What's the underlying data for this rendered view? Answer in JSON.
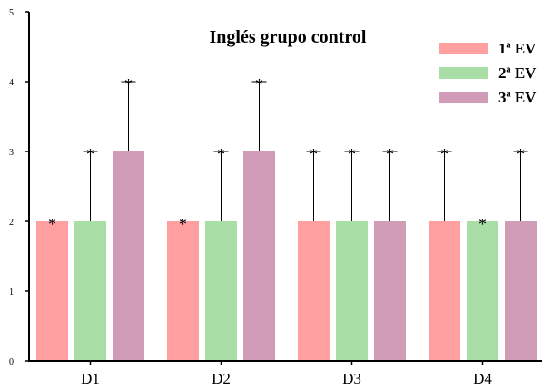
{
  "chart_data": {
    "type": "bar",
    "title": "Inglés grupo control",
    "categories": [
      "D1",
      "D2",
      "D3",
      "D4"
    ],
    "series": [
      {
        "name": "1ª EV",
        "color": "#ff9f9f",
        "values": [
          2,
          2,
          2,
          2
        ],
        "errors": [
          0,
          0,
          1,
          1
        ]
      },
      {
        "name": "2ª EV",
        "color": "#a9dfa6",
        "values": [
          2,
          2,
          2,
          2
        ],
        "errors": [
          1,
          1,
          1,
          0
        ]
      },
      {
        "name": "3ª EV",
        "color": "#d09cb8",
        "values": [
          3,
          3,
          2,
          2
        ],
        "errors": [
          1,
          1,
          1,
          1
        ]
      }
    ],
    "significance_marker": "*",
    "ylim": [
      0,
      5
    ],
    "yticks": [
      "0",
      "1",
      "2",
      "3",
      "4",
      "5"
    ],
    "grid": false,
    "legend_position": "top-right"
  }
}
